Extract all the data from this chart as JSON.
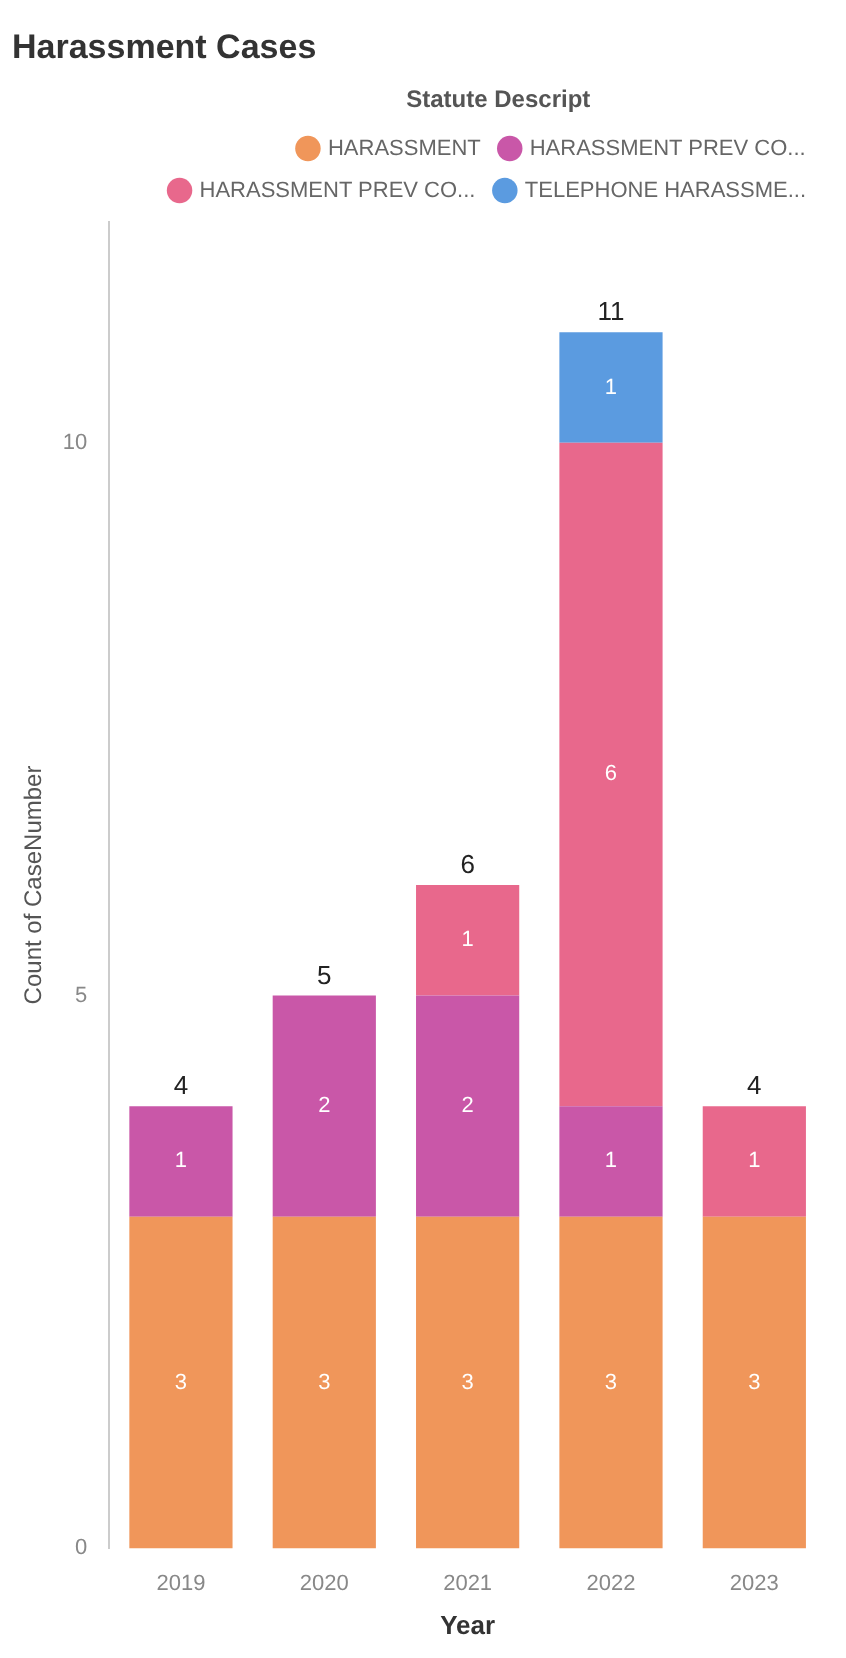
{
  "chart_data": {
    "type": "bar",
    "title": "Harassment Cases",
    "xlabel": "Year",
    "ylabel": "Count of CaseNumber",
    "legend_title": "Statute Descript",
    "categories": [
      "2019",
      "2020",
      "2021",
      "2022",
      "2023"
    ],
    "series": [
      {
        "name": "HARASSMENT",
        "color": "#f0965a",
        "values": [
          3,
          3,
          3,
          3,
          3
        ]
      },
      {
        "name": "HARASSMENT PREV CO...",
        "color": "#c957a8",
        "values": [
          1,
          2,
          2,
          1,
          null
        ]
      },
      {
        "name": "HARASSMENT PREV CO...",
        "color": "#e8688c",
        "values": [
          null,
          null,
          1,
          6,
          1
        ]
      },
      {
        "name": "TELEPHONE HARASSME...",
        "color": "#5b9be0",
        "values": [
          null,
          null,
          null,
          1,
          null
        ]
      }
    ],
    "stacked": true,
    "data_labels": true,
    "totals": [
      "4",
      "5",
      "6",
      "11",
      "4"
    ],
    "ylim": [
      0,
      12
    ],
    "yticks": [
      0,
      5,
      10
    ],
    "grid": false,
    "legend": "top right"
  }
}
